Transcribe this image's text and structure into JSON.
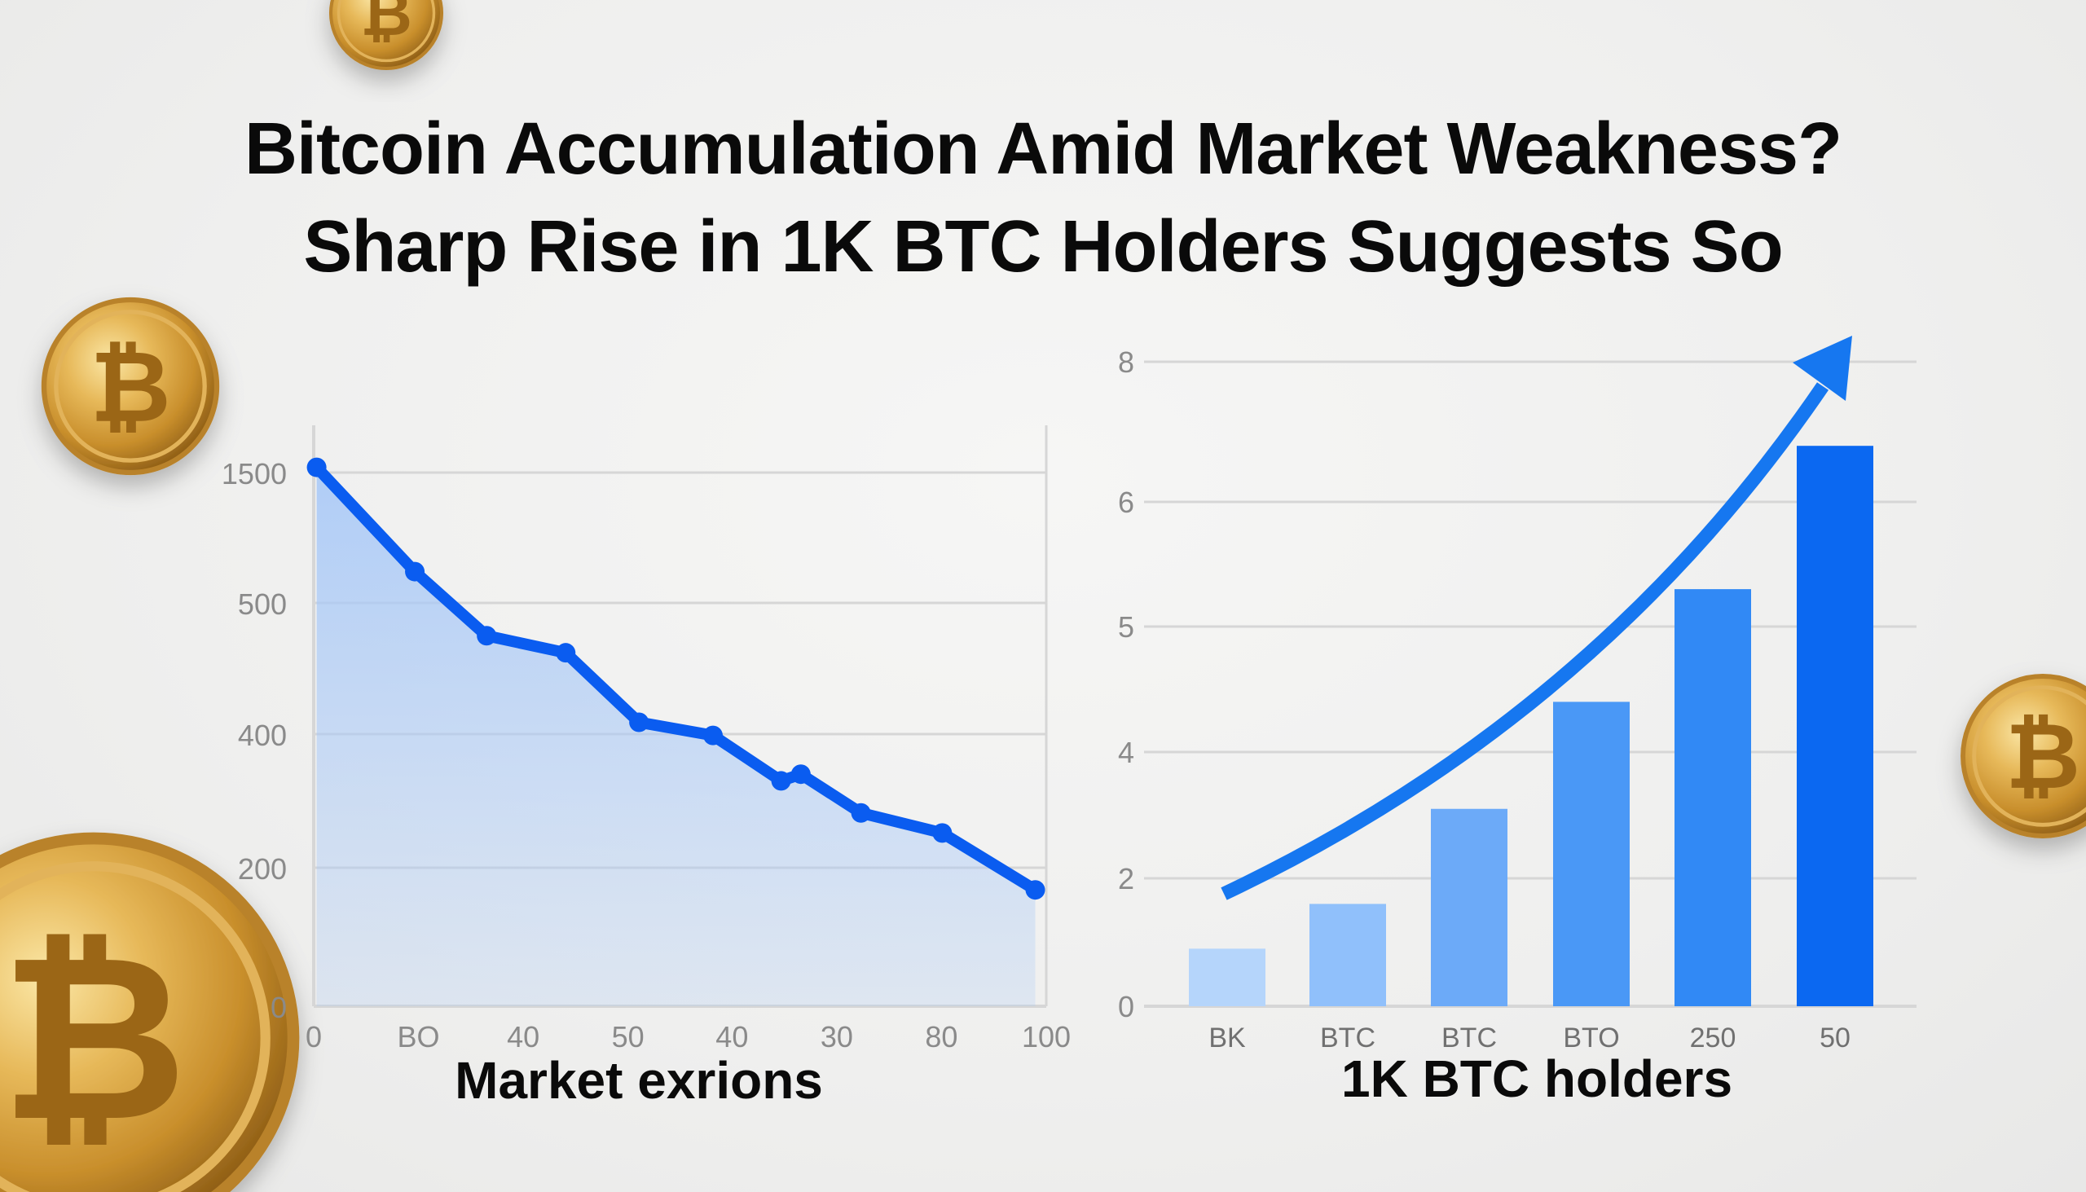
{
  "title": {
    "line1": "Bitcoin Accumulation Amid Market Weakness?",
    "line2": "Sharp Rise in 1K BTC Holders Suggests So"
  },
  "decor": {
    "coin_icon": "bitcoin-coin-icon",
    "coin_symbol": "₿"
  },
  "colors": {
    "line": "#0a5cf0",
    "area": "#a9c9f7",
    "grid": "#d6d6d6",
    "tick": "#8a8a8a",
    "arrow": "#1677f0",
    "bars": [
      "#b5d5fb",
      "#90c0fb",
      "#6caaf8",
      "#4a98f6",
      "#3189f5",
      "#0b68f1"
    ]
  },
  "chart_data": [
    {
      "type": "area",
      "xlabel": "Market exrions",
      "x_ticks": [
        {
          "label": "0",
          "x": 0
        },
        {
          "label": "BO",
          "x": 14.3
        },
        {
          "label": "40",
          "x": 28.6
        },
        {
          "label": "50",
          "x": 42.9
        },
        {
          "label": "40",
          "x": 57.1
        },
        {
          "label": "30",
          "x": 71.4
        },
        {
          "label": "80",
          "x": 85.7
        },
        {
          "label": "100",
          "x": 100
        }
      ],
      "y_ticks": [
        0,
        200,
        400,
        500,
        1500
      ],
      "grid": true,
      "points": [
        {
          "x": 0.4,
          "y": 1540
        },
        {
          "x": 13.8,
          "y": 740
        },
        {
          "x": 23.6,
          "y": 475
        },
        {
          "x": 34.4,
          "y": 462
        },
        {
          "x": 44.4,
          "y": 409
        },
        {
          "x": 54.5,
          "y": 398
        },
        {
          "x": 63.8,
          "y": 330
        },
        {
          "x": 66.5,
          "y": 340
        },
        {
          "x": 74.7,
          "y": 282
        },
        {
          "x": 85.8,
          "y": 252
        },
        {
          "x": 98.5,
          "y": 168
        }
      ]
    },
    {
      "type": "bar",
      "xlabel": "1K BTC holders",
      "categories": [
        "BK",
        "BTC",
        "BTC",
        "BTO",
        "250",
        "50"
      ],
      "values": [
        0.9,
        1.6,
        3.1,
        4.4,
        5.3,
        6.8
      ],
      "y_ticks": [
        0,
        2,
        4,
        5,
        6,
        8
      ],
      "grid": true,
      "trend_arrow": "upward curved arrow"
    }
  ]
}
